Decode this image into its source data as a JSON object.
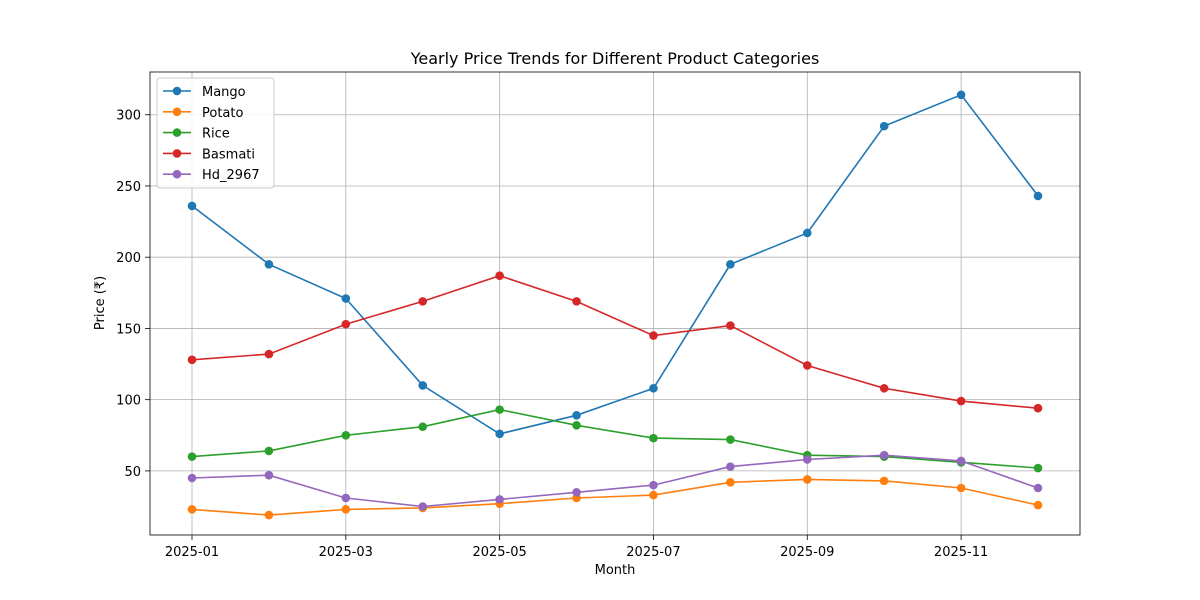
{
  "chart_data": {
    "type": "line",
    "title": "Yearly Price Trends for Different Product Categories",
    "xlabel": "Month",
    "ylabel": "Price (₹)",
    "x": [
      "2025-01",
      "2025-02",
      "2025-03",
      "2025-04",
      "2025-05",
      "2025-06",
      "2025-07",
      "2025-08",
      "2025-09",
      "2025-10",
      "2025-11",
      "2025-12"
    ],
    "x_tick_labels": [
      "2025-01",
      "2025-03",
      "2025-05",
      "2025-07",
      "2025-09",
      "2025-11"
    ],
    "y_ticks": [
      50,
      100,
      150,
      200,
      250,
      300
    ],
    "ylim": [
      5,
      330
    ],
    "grid": true,
    "legend_position": "upper-left",
    "series": [
      {
        "name": "Mango",
        "color": "#1f77b4",
        "values": [
          236,
          195,
          171,
          110,
          76,
          89,
          108,
          195,
          217,
          292,
          314,
          243
        ]
      },
      {
        "name": "Potato",
        "color": "#ff7f0e",
        "values": [
          23,
          19,
          23,
          24,
          27,
          31,
          33,
          42,
          44,
          43,
          38,
          26
        ]
      },
      {
        "name": "Rice",
        "color": "#2ca02c",
        "values": [
          60,
          64,
          75,
          81,
          93,
          82,
          73,
          72,
          61,
          60,
          56,
          52
        ]
      },
      {
        "name": "Basmati",
        "color": "#d62728",
        "values": [
          128,
          132,
          153,
          169,
          187,
          169,
          145,
          152,
          124,
          108,
          99,
          94
        ]
      },
      {
        "name": "Hd_2967",
        "color": "#9467bd",
        "values": [
          45,
          47,
          31,
          25,
          30,
          35,
          40,
          53,
          58,
          61,
          57,
          38
        ]
      }
    ]
  }
}
